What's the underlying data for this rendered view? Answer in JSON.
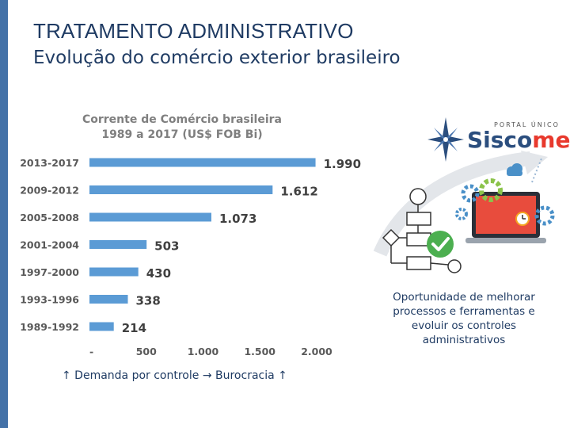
{
  "slide": {
    "title": "TRATAMENTO ADMINISTRATIVO",
    "subtitle": "Evolução do comércio exterior brasileiro",
    "note": "Oportunidade de melhorar processos e ferramentas e evoluir os controles administrativos",
    "footer": "↑ Demanda por controle → Burocracia ↑"
  },
  "brand": {
    "tagline": "PORTAL ÚNICO",
    "name_main": "Sisco",
    "name_accent": "mex",
    "icon": "compass-star-icon"
  },
  "colors": {
    "bar": "#5b9bd5",
    "title": "#1f3b63",
    "accent_bar": "#4472a8",
    "axis_text": "#595959",
    "value_text": "#404040"
  },
  "chart_data": {
    "type": "bar",
    "orientation": "horizontal",
    "title": "Corrente de Comércio brasileira 1989 a 2017 (US$ FOB Bi)",
    "title_lines": [
      "Corrente de Comércio brasileira",
      "1989 a 2017 (US$ FOB Bi)"
    ],
    "categories": [
      "2013-2017",
      "2009-2012",
      "2005-2008",
      "2001-2004",
      "1997-2000",
      "1993-1996",
      "1989-1992"
    ],
    "values": [
      1990,
      1612,
      1073,
      503,
      430,
      338,
      214
    ],
    "value_labels": [
      "1.990",
      "1.612",
      "1.073",
      "503",
      "430",
      "338",
      "214"
    ],
    "xlim": [
      0,
      2000
    ],
    "xticks": [
      0,
      500,
      1000,
      1500,
      2000
    ],
    "xtick_labels": [
      "-",
      "500",
      "1.000",
      "1.500",
      "2.000"
    ],
    "grid": false,
    "legend": "none"
  }
}
